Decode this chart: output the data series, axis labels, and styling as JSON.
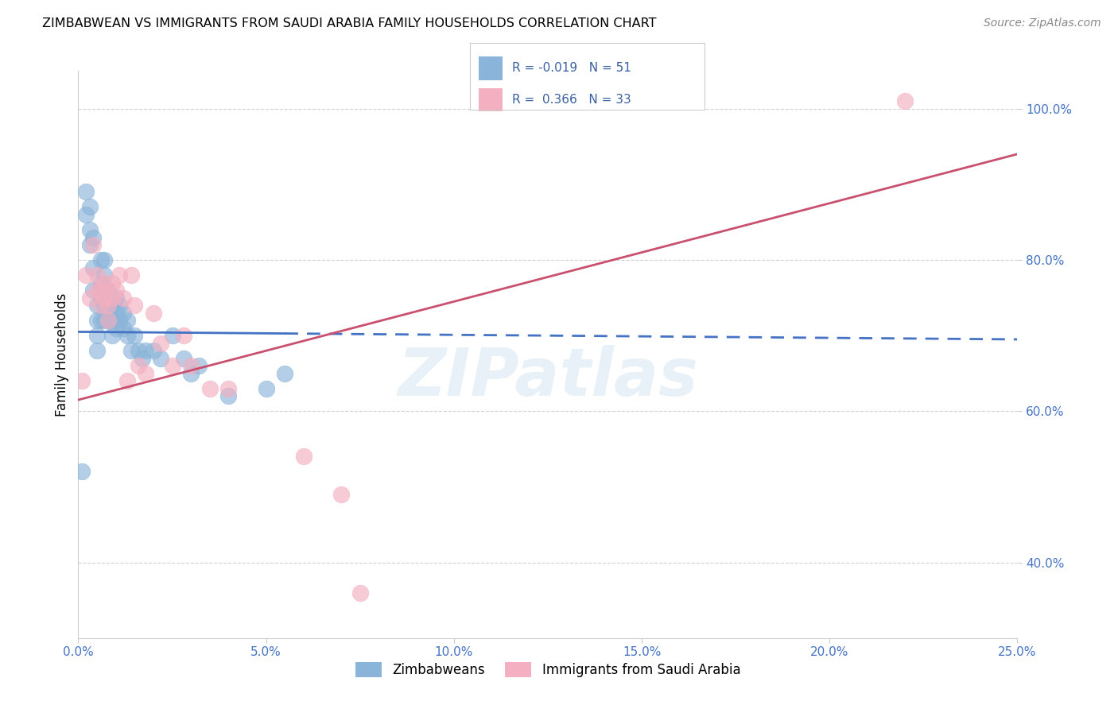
{
  "title": "ZIMBABWEAN VS IMMIGRANTS FROM SAUDI ARABIA FAMILY HOUSEHOLDS CORRELATION CHART",
  "source": "Source: ZipAtlas.com",
  "ylabel": "Family Households",
  "xlim": [
    0.0,
    0.25
  ],
  "ylim": [
    0.3,
    1.05
  ],
  "ytick_labels": [
    "40.0%",
    "60.0%",
    "80.0%",
    "100.0%"
  ],
  "ytick_values": [
    0.4,
    0.6,
    0.8,
    1.0
  ],
  "xtick_labels": [
    "0.0%",
    "5.0%",
    "10.0%",
    "15.0%",
    "20.0%",
    "25.0%"
  ],
  "xtick_values": [
    0.0,
    0.05,
    0.1,
    0.15,
    0.2,
    0.25
  ],
  "legend_label1": "Zimbabweans",
  "legend_label2": "Immigrants from Saudi Arabia",
  "R1": -0.019,
  "N1": 51,
  "R2": 0.366,
  "N2": 33,
  "color1": "#8ab4d9",
  "color2": "#f4afc0",
  "line_color1": "#4472c4",
  "line_color2": "#c9506e",
  "watermark": "ZIPatlas",
  "zimbabwean_x": [
    0.001,
    0.002,
    0.002,
    0.003,
    0.003,
    0.003,
    0.004,
    0.004,
    0.004,
    0.005,
    0.005,
    0.005,
    0.005,
    0.006,
    0.006,
    0.006,
    0.006,
    0.007,
    0.007,
    0.007,
    0.007,
    0.007,
    0.008,
    0.008,
    0.008,
    0.009,
    0.009,
    0.009,
    0.01,
    0.01,
    0.01,
    0.011,
    0.011,
    0.012,
    0.012,
    0.013,
    0.013,
    0.014,
    0.015,
    0.016,
    0.017,
    0.018,
    0.02,
    0.022,
    0.025,
    0.028,
    0.03,
    0.032,
    0.04,
    0.05,
    0.055
  ],
  "zimbabwean_y": [
    0.52,
    0.89,
    0.86,
    0.84,
    0.82,
    0.87,
    0.83,
    0.79,
    0.76,
    0.74,
    0.72,
    0.7,
    0.68,
    0.8,
    0.77,
    0.75,
    0.72,
    0.8,
    0.78,
    0.76,
    0.74,
    0.72,
    0.76,
    0.74,
    0.72,
    0.74,
    0.72,
    0.7,
    0.75,
    0.73,
    0.71,
    0.74,
    0.72,
    0.73,
    0.71,
    0.72,
    0.7,
    0.68,
    0.7,
    0.68,
    0.67,
    0.68,
    0.68,
    0.67,
    0.7,
    0.67,
    0.65,
    0.66,
    0.62,
    0.63,
    0.65
  ],
  "saudi_x": [
    0.001,
    0.002,
    0.003,
    0.004,
    0.005,
    0.005,
    0.006,
    0.006,
    0.007,
    0.007,
    0.008,
    0.008,
    0.009,
    0.009,
    0.01,
    0.011,
    0.012,
    0.013,
    0.014,
    0.015,
    0.016,
    0.018,
    0.02,
    0.022,
    0.025,
    0.028,
    0.03,
    0.035,
    0.04,
    0.06,
    0.07,
    0.075,
    0.22
  ],
  "saudi_y": [
    0.64,
    0.78,
    0.75,
    0.82,
    0.78,
    0.76,
    0.76,
    0.74,
    0.77,
    0.75,
    0.74,
    0.72,
    0.77,
    0.75,
    0.76,
    0.78,
    0.75,
    0.64,
    0.78,
    0.74,
    0.66,
    0.65,
    0.73,
    0.69,
    0.66,
    0.7,
    0.66,
    0.63,
    0.63,
    0.54,
    0.49,
    0.36,
    1.01
  ],
  "line1_x0": 0.0,
  "line1_y0": 0.705,
  "line1_x1": 0.25,
  "line1_y1": 0.695,
  "line1_solid_end": 0.055,
  "line2_x0": 0.0,
  "line2_y0": 0.615,
  "line2_x1": 0.25,
  "line2_y1": 0.94
}
